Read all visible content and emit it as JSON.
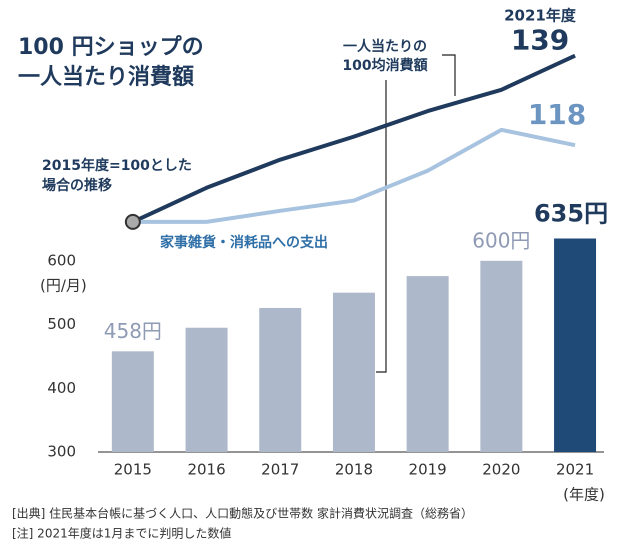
{
  "chart_data": {
    "type": "bar",
    "title": "100 円ショップの\n一人当たり消費額",
    "categories": [
      "2015",
      "2016",
      "2017",
      "2018",
      "2019",
      "2020",
      "2021"
    ],
    "x_unit": "(年度)",
    "y_label": "(円/月)",
    "ylim": [
      300,
      970
    ],
    "yticks": [
      300,
      400,
      500,
      600
    ],
    "y2lim": [
      46,
      146.2
    ],
    "grid": false,
    "series": [
      {
        "type": "bar",
        "colors": [
          "#aeb8cb",
          "#aeb8cb",
          "#aeb8cb",
          "#aeb8cb",
          "#aeb8cb",
          "#aeb8cb",
          "#1f4a78"
        ],
        "values": [
          458,
          495,
          526,
          550,
          576,
          600,
          635
        ],
        "value_labels": [
          "458円",
          null,
          null,
          null,
          null,
          "600円",
          "635円"
        ],
        "label_colors": [
          "#8f9bb5",
          null,
          null,
          null,
          null,
          "#8f9bb5",
          "#1f3a5c"
        ]
      },
      {
        "type": "line",
        "axis": "y2",
        "name": "一人当たりの\n100均消費額",
        "color": "#1f3a5c",
        "values": [
          100,
          108,
          114.6,
          120,
          126,
          131,
          139
        ],
        "value_labels": [
          null,
          null,
          null,
          null,
          null,
          null,
          "139"
        ]
      },
      {
        "type": "line",
        "axis": "y2",
        "name": "家事雑貨・消耗品への支出",
        "color": "#a7c3df",
        "label_color": "#6d95c2",
        "values": [
          100,
          100,
          102.6,
          105,
          112,
          121.6,
          118
        ],
        "value_labels": [
          null,
          null,
          null,
          null,
          null,
          null,
          "118"
        ]
      }
    ],
    "annotations": [
      "2021年度",
      "2015年度=100とした\n場合の推移"
    ],
    "footnotes": [
      "[出典] 住民基本台帳に基づく人口、人口動態及び世帯数  家計消費状況調査（総務省）",
      "[注] 2021年度は1月までに判明した数値"
    ]
  }
}
